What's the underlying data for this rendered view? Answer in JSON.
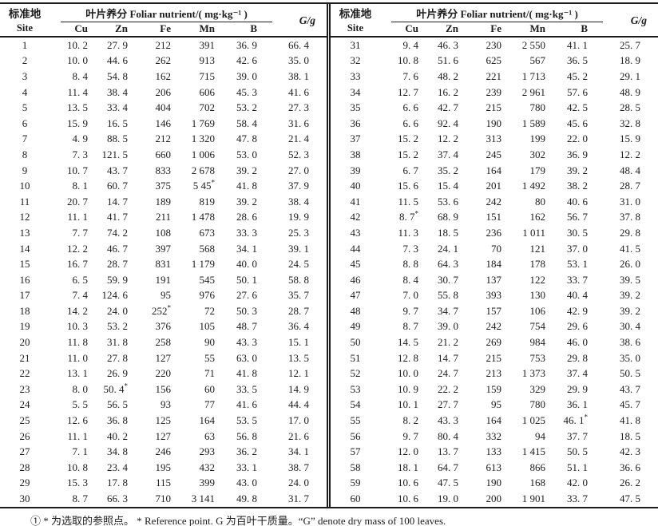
{
  "page": {
    "background": "#ffffff",
    "text_color": "#1c1c1c",
    "rule_color": "#1c1c1c"
  },
  "header": {
    "site_label_zh": "标准地",
    "site_label_en": "Site",
    "nutrient_span_label": "叶片养分 Foliar nutrient/( mg·kg⁻¹ )",
    "nutrient_columns": [
      "Cu",
      "Zn",
      "Fe",
      "Mn",
      "B"
    ],
    "mass_label": "G/g"
  },
  "columns": [
    "Site",
    "Cu",
    "Zn",
    "Fe",
    "Mn",
    "B",
    "G/g"
  ],
  "tables": [
    {
      "name": "sites-1-to-30",
      "rows": [
        [
          "1",
          "10. 2",
          "27. 9",
          "212",
          "391",
          "36. 9",
          "66. 4"
        ],
        [
          "2",
          "10. 0",
          "44. 6",
          "262",
          "913",
          "42. 6",
          "35. 0"
        ],
        [
          "3",
          "8. 4",
          "54. 8",
          "162",
          "715",
          "39. 0",
          "38. 1"
        ],
        [
          "4",
          "11. 4",
          "38. 4",
          "206",
          "606",
          "45. 3",
          "41. 6"
        ],
        [
          "5",
          "13. 5",
          "33. 4",
          "404",
          "702",
          "53. 2",
          "27. 3"
        ],
        [
          "6",
          "15. 9",
          "16. 5",
          "146",
          "1 769",
          "58. 4",
          "31. 6"
        ],
        [
          "7",
          "4. 9",
          "88. 5",
          "212",
          "1 320",
          "47. 8",
          "21. 4"
        ],
        [
          "8",
          "7. 3",
          "121. 5",
          "660",
          "1 006",
          "53. 0",
          "52. 3"
        ],
        [
          "9",
          "10. 7",
          "43. 7",
          "833",
          "2 678",
          "39. 2",
          "27. 0"
        ],
        [
          "10",
          "8. 1",
          "60. 7",
          "375",
          "5 45*",
          "41. 8",
          "37. 9"
        ],
        [
          "11",
          "20. 7",
          "14. 7",
          "189",
          "819",
          "39. 2",
          "38. 4"
        ],
        [
          "12",
          "11. 1",
          "41. 7",
          "211",
          "1 478",
          "28. 6",
          "19. 9"
        ],
        [
          "13",
          "7. 7",
          "74. 2",
          "108",
          "673",
          "33. 3",
          "25. 3"
        ],
        [
          "14",
          "12. 2",
          "46. 7",
          "397",
          "568",
          "34. 1",
          "39. 1"
        ],
        [
          "15",
          "16. 7",
          "28. 7",
          "831",
          "1 179",
          "40. 0",
          "24. 5"
        ],
        [
          "16",
          "6. 5",
          "59. 9",
          "191",
          "545",
          "50. 1",
          "58. 8"
        ],
        [
          "17",
          "7. 4",
          "124. 6",
          "95",
          "976",
          "27. 6",
          "35. 7"
        ],
        [
          "18",
          "14. 2",
          "24. 0",
          "252*",
          "72",
          "50. 3",
          "28. 7"
        ],
        [
          "19",
          "10. 3",
          "53. 2",
          "376",
          "105",
          "48. 7",
          "36. 4"
        ],
        [
          "20",
          "11. 8",
          "31. 8",
          "258",
          "90",
          "43. 3",
          "15. 1"
        ],
        [
          "21",
          "11. 0",
          "27. 8",
          "127",
          "55",
          "63. 0",
          "13. 5"
        ],
        [
          "22",
          "13. 1",
          "26. 9",
          "220",
          "71",
          "41. 8",
          "12. 1"
        ],
        [
          "23",
          "8. 0",
          "50. 4*",
          "156",
          "60",
          "33. 5",
          "14. 9"
        ],
        [
          "24",
          "5. 5",
          "56. 5",
          "93",
          "77",
          "41. 6",
          "44. 4"
        ],
        [
          "25",
          "12. 6",
          "36. 8",
          "125",
          "164",
          "53. 5",
          "17. 0"
        ],
        [
          "26",
          "11. 1",
          "40. 2",
          "127",
          "63",
          "56. 8",
          "21. 6"
        ],
        [
          "27",
          "7. 1",
          "34. 8",
          "246",
          "293",
          "36. 2",
          "34. 1"
        ],
        [
          "28",
          "10. 8",
          "23. 4",
          "195",
          "432",
          "33. 1",
          "38. 7"
        ],
        [
          "29",
          "15. 3",
          "17. 8",
          "115",
          "399",
          "43. 0",
          "24. 0"
        ],
        [
          "30",
          "8. 7",
          "66. 3",
          "710",
          "3 141",
          "49. 8",
          "31. 7"
        ]
      ]
    },
    {
      "name": "sites-31-to-60",
      "rows": [
        [
          "31",
          "9. 4",
          "46. 3",
          "230",
          "2 550",
          "41. 1",
          "25. 7"
        ],
        [
          "32",
          "10. 8",
          "51. 6",
          "625",
          "567",
          "36. 5",
          "18. 9"
        ],
        [
          "33",
          "7. 6",
          "48. 2",
          "221",
          "1 713",
          "45. 2",
          "29. 1"
        ],
        [
          "34",
          "12. 7",
          "16. 2",
          "239",
          "2 961",
          "57. 6",
          "48. 9"
        ],
        [
          "35",
          "6. 6",
          "42. 7",
          "215",
          "780",
          "42. 5",
          "28. 5"
        ],
        [
          "36",
          "6. 6",
          "92. 4",
          "190",
          "1 589",
          "45. 6",
          "32. 8"
        ],
        [
          "37",
          "15. 2",
          "12. 2",
          "313",
          "199",
          "22. 0",
          "15. 9"
        ],
        [
          "38",
          "15. 2",
          "37. 4",
          "245",
          "302",
          "36. 9",
          "12. 2"
        ],
        [
          "39",
          "6. 7",
          "35. 2",
          "164",
          "179",
          "39. 2",
          "48. 4"
        ],
        [
          "40",
          "15. 6",
          "15. 4",
          "201",
          "1 492",
          "38. 2",
          "28. 7"
        ],
        [
          "41",
          "11. 5",
          "53. 6",
          "242",
          "80",
          "40. 6",
          "31. 0"
        ],
        [
          "42",
          "8. 7*",
          "68. 9",
          "151",
          "162",
          "56. 7",
          "37. 8"
        ],
        [
          "43",
          "11. 3",
          "18. 5",
          "236",
          "1 011",
          "30. 5",
          "29. 8"
        ],
        [
          "44",
          "7. 3",
          "24. 1",
          "70",
          "121",
          "37. 0",
          "41. 5"
        ],
        [
          "45",
          "8. 8",
          "64. 3",
          "184",
          "178",
          "53. 1",
          "26. 0"
        ],
        [
          "46",
          "8. 4",
          "30. 7",
          "137",
          "122",
          "33. 7",
          "39. 5"
        ],
        [
          "47",
          "7. 0",
          "55. 8",
          "393",
          "130",
          "40. 4",
          "39. 2"
        ],
        [
          "48",
          "9. 7",
          "34. 7",
          "157",
          "106",
          "42. 9",
          "39. 2"
        ],
        [
          "49",
          "8. 7",
          "39. 0",
          "242",
          "754",
          "29. 6",
          "30. 4"
        ],
        [
          "50",
          "14. 5",
          "21. 2",
          "269",
          "984",
          "46. 0",
          "38. 6"
        ],
        [
          "51",
          "12. 8",
          "14. 7",
          "215",
          "753",
          "29. 8",
          "35. 0"
        ],
        [
          "52",
          "10. 0",
          "24. 7",
          "213",
          "1 373",
          "37. 4",
          "50. 5"
        ],
        [
          "53",
          "10. 9",
          "22. 2",
          "159",
          "329",
          "29. 9",
          "43. 7"
        ],
        [
          "54",
          "10. 1",
          "27. 7",
          "95",
          "780",
          "36. 1",
          "45. 7"
        ],
        [
          "55",
          "8. 2",
          "43. 3",
          "164",
          "1 025",
          "46. 1*",
          "41. 8"
        ],
        [
          "56",
          "9. 7",
          "80. 4",
          "332",
          "94",
          "37. 7",
          "18. 5"
        ],
        [
          "57",
          "12. 0",
          "13. 7",
          "133",
          "1 415",
          "50. 5",
          "42. 3"
        ],
        [
          "58",
          "18. 1",
          "64. 7",
          "613",
          "866",
          "51. 1",
          "36. 6"
        ],
        [
          "59",
          "10. 6",
          "47. 5",
          "190",
          "168",
          "42. 0",
          "26. 2"
        ],
        [
          "60",
          "10. 6",
          "19. 0",
          "200",
          "1 901",
          "33. 7",
          "47. 5"
        ]
      ]
    }
  ],
  "footnote": {
    "text": "① * 为选取的参照点。 * Reference point. G 为百叶干质量。“G” denote dry mass of 100 leaves."
  }
}
